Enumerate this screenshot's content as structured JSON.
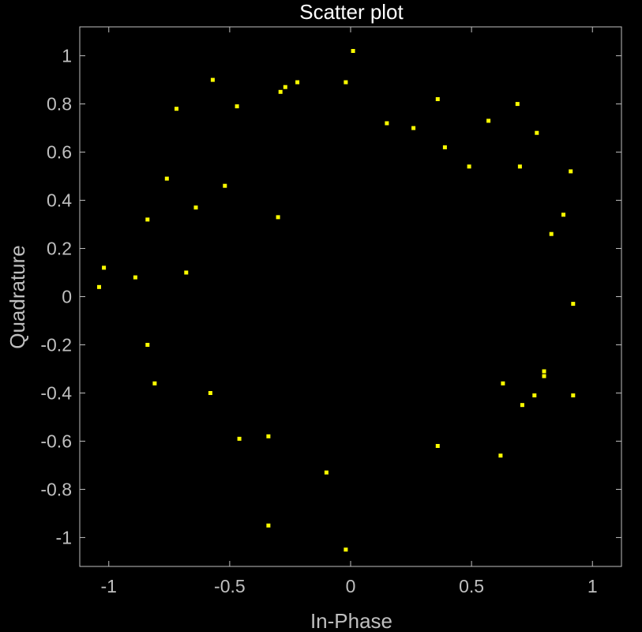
{
  "chart_data": {
    "type": "scatter",
    "title": "Scatter plot",
    "xlabel": "In-Phase",
    "ylabel": "Quadrature",
    "xlim": [
      -1.12,
      1.12
    ],
    "ylim": [
      -1.12,
      1.12
    ],
    "xticks": [
      -1,
      -0.5,
      0,
      0.5,
      1
    ],
    "xtick_labels": [
      "-1",
      "-0.5",
      "0",
      "0.5",
      "1"
    ],
    "yticks": [
      1,
      0.8,
      0.6,
      0.4,
      0.2,
      0,
      -0.2,
      -0.4,
      -0.6,
      -0.8,
      -1
    ],
    "ytick_labels": [
      "1",
      "0.8",
      "0.6",
      "0.4",
      "0.2",
      "0",
      "-0.2",
      "-0.4",
      "-0.6",
      "-0.8",
      "-1"
    ],
    "grid": false,
    "background_color": "#000000",
    "axes_color": "#bfbfbf",
    "title_color": "#ffffff",
    "marker_color": "#ffff00",
    "marker_shape": "square",
    "points": [
      {
        "x": 0.01,
        "y": 1.02
      },
      {
        "x": -0.57,
        "y": 0.9
      },
      {
        "x": -0.02,
        "y": 0.89
      },
      {
        "x": -0.22,
        "y": 0.89
      },
      {
        "x": -0.27,
        "y": 0.87
      },
      {
        "x": -0.29,
        "y": 0.85
      },
      {
        "x": -0.47,
        "y": 0.79
      },
      {
        "x": -0.72,
        "y": 0.78
      },
      {
        "x": 0.36,
        "y": 0.82
      },
      {
        "x": 0.69,
        "y": 0.8
      },
      {
        "x": 0.57,
        "y": 0.73
      },
      {
        "x": 0.15,
        "y": 0.72
      },
      {
        "x": 0.26,
        "y": 0.7
      },
      {
        "x": 0.77,
        "y": 0.68
      },
      {
        "x": 0.39,
        "y": 0.62
      },
      {
        "x": 0.49,
        "y": 0.54
      },
      {
        "x": 0.7,
        "y": 0.54
      },
      {
        "x": 0.91,
        "y": 0.52
      },
      {
        "x": -0.76,
        "y": 0.49
      },
      {
        "x": -0.52,
        "y": 0.46
      },
      {
        "x": -0.64,
        "y": 0.37
      },
      {
        "x": 0.88,
        "y": 0.34
      },
      {
        "x": -0.84,
        "y": 0.32
      },
      {
        "x": -0.3,
        "y": 0.33
      },
      {
        "x": 0.83,
        "y": 0.26
      },
      {
        "x": -1.02,
        "y": 0.12
      },
      {
        "x": -0.68,
        "y": 0.1
      },
      {
        "x": -0.89,
        "y": 0.08
      },
      {
        "x": -1.04,
        "y": 0.04
      },
      {
        "x": 0.92,
        "y": -0.03
      },
      {
        "x": -0.84,
        "y": -0.2
      },
      {
        "x": 0.8,
        "y": -0.31
      },
      {
        "x": 0.8,
        "y": -0.33
      },
      {
        "x": -0.81,
        "y": -0.36
      },
      {
        "x": 0.63,
        "y": -0.36
      },
      {
        "x": -0.58,
        "y": -0.4
      },
      {
        "x": 0.76,
        "y": -0.41
      },
      {
        "x": 0.92,
        "y": -0.41
      },
      {
        "x": 0.71,
        "y": -0.45
      },
      {
        "x": -0.46,
        "y": -0.59
      },
      {
        "x": -0.34,
        "y": -0.58
      },
      {
        "x": 0.36,
        "y": -0.62
      },
      {
        "x": 0.62,
        "y": -0.66
      },
      {
        "x": -0.1,
        "y": -0.73
      },
      {
        "x": -0.34,
        "y": -0.95
      },
      {
        "x": -0.02,
        "y": -1.05
      }
    ]
  }
}
